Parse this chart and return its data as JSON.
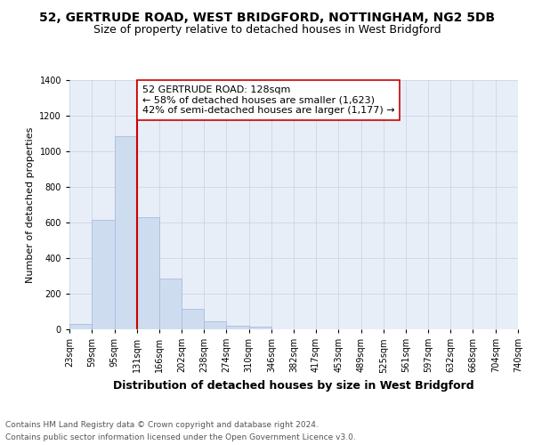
{
  "title1": "52, GERTRUDE ROAD, WEST BRIDGFORD, NOTTINGHAM, NG2 5DB",
  "title2": "Size of property relative to detached houses in West Bridgford",
  "xlabel": "Distribution of detached houses by size in West Bridgford",
  "ylabel": "Number of detached properties",
  "bar_edges": [
    23,
    59,
    95,
    131,
    166,
    202,
    238,
    274,
    310,
    346,
    382,
    417,
    453,
    489,
    525,
    561,
    597,
    632,
    668,
    704,
    740
  ],
  "bar_heights": [
    30,
    615,
    1085,
    630,
    285,
    115,
    45,
    20,
    15,
    0,
    0,
    0,
    0,
    0,
    0,
    0,
    0,
    0,
    0,
    0
  ],
  "bar_color": "#cddcef",
  "bar_edgecolor": "#aabbdd",
  "reference_line_x": 131,
  "reference_line_color": "#cc0000",
  "annotation_line1": "52 GERTRUDE ROAD: 128sqm",
  "annotation_line2": "← 58% of detached houses are smaller (1,623)",
  "annotation_line3": "42% of semi-detached houses are larger (1,177) →",
  "annotation_box_edgecolor": "#cc0000",
  "annotation_box_facecolor": "#ffffff",
  "ylim": [
    0,
    1400
  ],
  "yticks": [
    0,
    200,
    400,
    600,
    800,
    1000,
    1200,
    1400
  ],
  "xlim_left": 23,
  "xlim_right": 740,
  "footer1": "Contains HM Land Registry data © Crown copyright and database right 2024.",
  "footer2": "Contains public sector information licensed under the Open Government Licence v3.0.",
  "title1_fontsize": 10,
  "title2_fontsize": 9,
  "xlabel_fontsize": 9,
  "ylabel_fontsize": 8,
  "annotation_fontsize": 8,
  "tick_fontsize": 7,
  "footer_fontsize": 6.5,
  "tick_labels": [
    "23sqm",
    "59sqm",
    "95sqm",
    "131sqm",
    "166sqm",
    "202sqm",
    "238sqm",
    "274sqm",
    "310sqm",
    "346sqm",
    "382sqm",
    "417sqm",
    "453sqm",
    "489sqm",
    "525sqm",
    "561sqm",
    "597sqm",
    "632sqm",
    "668sqm",
    "704sqm",
    "740sqm"
  ],
  "bg_color": "#e8eef8",
  "grid_color": "#c8d0e0"
}
